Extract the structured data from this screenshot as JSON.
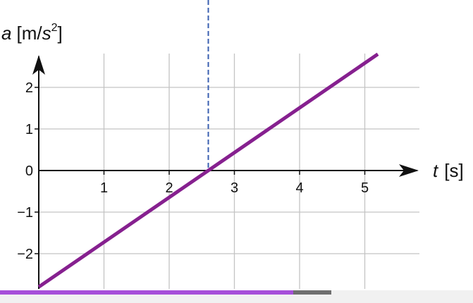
{
  "chart_data": {
    "type": "line",
    "x_axis": {
      "label_var": "t",
      "label_unit": "[s]",
      "ticks": [
        "1",
        "2",
        "3",
        "4",
        "5"
      ],
      "tick_values": [
        1,
        2,
        3,
        4,
        5
      ],
      "range": [
        -0.2,
        5.3
      ]
    },
    "y_axis": {
      "label_var": "a",
      "label_unit_prefix": "[m/",
      "label_unit_var": "s",
      "label_unit_exp": "2",
      "label_unit_suffix": "]",
      "ticks": [
        "2",
        "1",
        "0",
        "−1",
        "−2"
      ],
      "tick_values": [
        2,
        1,
        0,
        -1,
        -2
      ],
      "range": [
        -2.8,
        2.8
      ]
    },
    "grid": true,
    "series": [
      {
        "x": [
          0,
          5.2
        ],
        "y": [
          -2.8,
          2.8
        ],
        "color": "#86208f"
      }
    ],
    "reference_line": {
      "x": 2.6,
      "style": "dashed",
      "color": "#3a5fb0"
    }
  },
  "progress": {
    "played_fraction": 0.62,
    "buffered_fraction": 0.7,
    "played_color": "#a64fd9"
  }
}
